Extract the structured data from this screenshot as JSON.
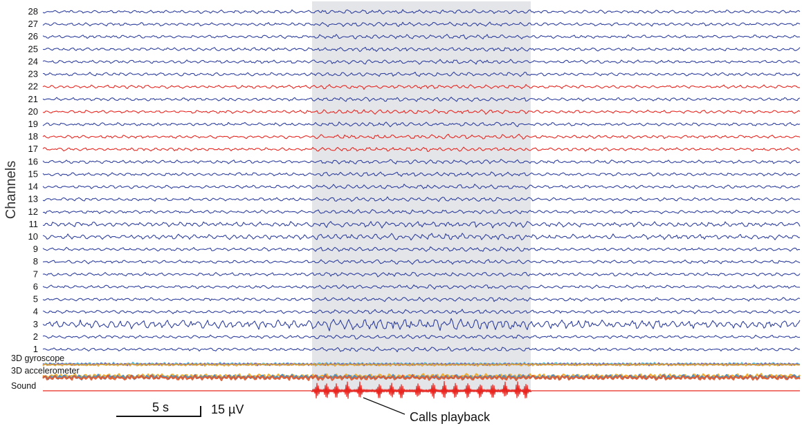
{
  "chart_data": {
    "type": "line",
    "ylabel": "Channels",
    "channels": [
      "1",
      "2",
      "3",
      "4",
      "5",
      "6",
      "7",
      "8",
      "9",
      "10",
      "11",
      "12",
      "13",
      "14",
      "15",
      "16",
      "17",
      "18",
      "19",
      "20",
      "21",
      "22",
      "23",
      "24",
      "25",
      "26",
      "27",
      "28"
    ],
    "highlighted_channels": [
      "17",
      "18",
      "20",
      "22"
    ],
    "sensor_tracks": [
      "3D gyroscope",
      "3D accelerometer",
      "Sound"
    ],
    "event_annotation": "Calls playback",
    "scale_bar": {
      "time": "5 s",
      "amplitude": "15 µV"
    },
    "colors": {
      "channel": "#2e3f9e",
      "highlight": "#e8251f",
      "shade": "#e4e5e9",
      "gyro": [
        "#3ab7e3",
        "#7d5fb0",
        "#e2a42a"
      ],
      "accel": [
        "#f2a81d",
        "#3a8fd0",
        "#e2562a"
      ],
      "sound": "#e8251f"
    }
  }
}
